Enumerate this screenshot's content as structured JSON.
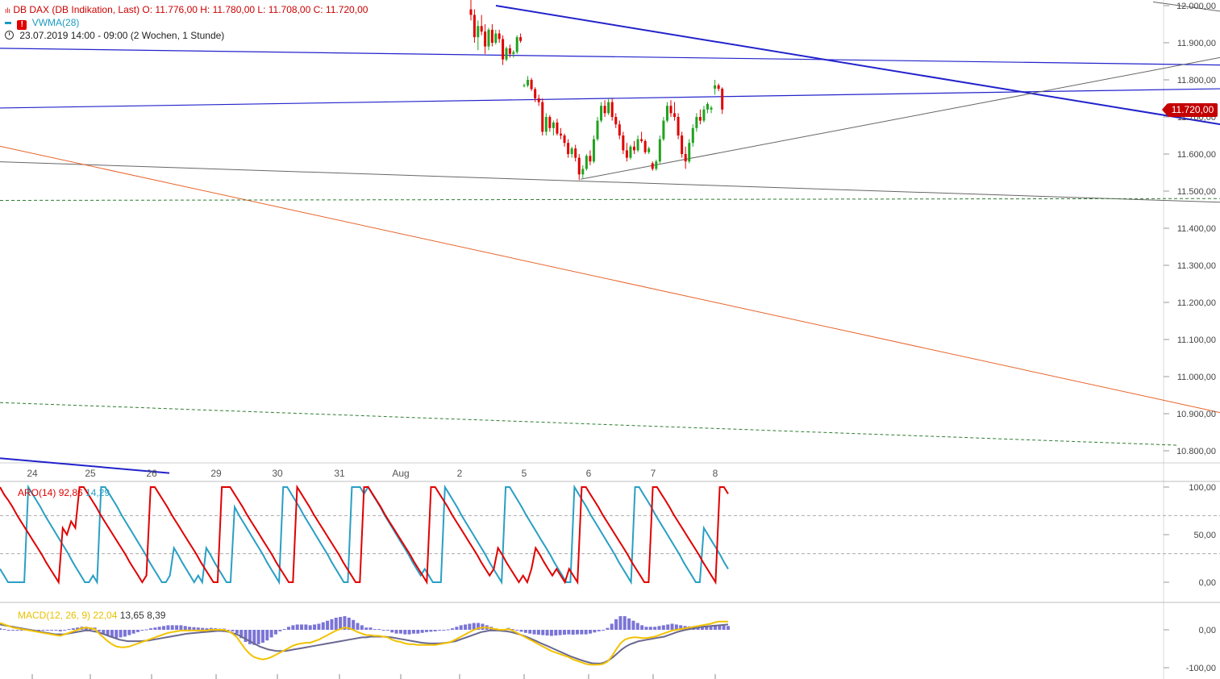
{
  "header": {
    "instrument_line": "DB DAX (DB Indikation, Last)  O: 11.776,00  H: 11.780,00  L: 11.708,00  C: 11.720,00",
    "indicator_label": "VWMA(28)",
    "range_line": "23.07.2019 14:00 - 09:00   (2 Wochen, 1 Stunde)"
  },
  "last_price": "11.720,00",
  "aroon": {
    "label": "ARO(14)",
    "up": "92,86",
    "down": "14,29"
  },
  "macd": {
    "label": "MACD(12, 26, 9)",
    "macd": "22,04",
    "signal": "13,65",
    "hist": "8,39"
  },
  "colors": {
    "up_candle": "#1fa31f",
    "down_candle": "#e00000",
    "trend_blue": "#2222cc",
    "trend_gray": "#666666",
    "trend_orange": "#e8642c",
    "support_green": "#2e7d32",
    "aroon_up": "#e00000",
    "aroon_down": "#2a9fc4",
    "macd_line": "#6a6890",
    "signal_line": "#f2c200",
    "histogram": "#7b74d6"
  },
  "chart_data": [
    {
      "type": "candlestick",
      "title": "DB DAX",
      "price_axis": {
        "range": [
          10750,
          12020
        ],
        "ticks": [
          "12.000,00",
          "11.900,00",
          "11.800,00",
          "11.700,00",
          "11.600,00",
          "11.500,00",
          "11.400,00",
          "11.300,00",
          "11.200,00",
          "11.100,00",
          "11.000,00",
          "10.900,00",
          "10.800,00"
        ]
      },
      "time_axis": {
        "labels": [
          "24",
          "25",
          "26",
          "29",
          "30",
          "31",
          "Aug",
          "2",
          "5",
          "6",
          "7",
          "8"
        ]
      },
      "candles": [
        [
          11990,
          12020,
          11960,
          11975
        ],
        [
          11975,
          11990,
          11900,
          11915
        ],
        [
          11915,
          11960,
          11880,
          11945
        ],
        [
          11945,
          11975,
          11920,
          11930
        ],
        [
          11930,
          11950,
          11870,
          11890
        ],
        [
          11890,
          11940,
          11880,
          11935
        ],
        [
          11935,
          11950,
          11890,
          11900
        ],
        [
          11900,
          11935,
          11895,
          11925
        ],
        [
          11925,
          11935,
          11900,
          11910
        ],
        [
          11910,
          11920,
          11840,
          11855
        ],
        [
          11855,
          11890,
          11850,
          11885
        ],
        [
          11885,
          11895,
          11860,
          11870
        ],
        [
          11870,
          11880,
          11860,
          11875
        ],
        [
          11875,
          11920,
          11870,
          11915
        ],
        [
          11915,
          11925,
          11900,
          11905
        ],
        [
          11785,
          11790,
          11780,
          11785
        ],
        [
          11785,
          11810,
          11780,
          11800
        ],
        [
          11800,
          11805,
          11770,
          11775
        ],
        [
          11775,
          11780,
          11740,
          11750
        ],
        [
          11750,
          11760,
          11730,
          11740
        ],
        [
          11740,
          11750,
          11650,
          11660
        ],
        [
          11660,
          11710,
          11650,
          11700
        ],
        [
          11700,
          11705,
          11660,
          11670
        ],
        [
          11670,
          11690,
          11650,
          11685
        ],
        [
          11685,
          11695,
          11650,
          11655
        ],
        [
          11655,
          11670,
          11640,
          11650
        ],
        [
          11650,
          11655,
          11620,
          11630
        ],
        [
          11630,
          11640,
          11590,
          11600
        ],
        [
          11600,
          11620,
          11590,
          11615
        ],
        [
          11615,
          11625,
          11580,
          11590
        ],
        [
          11590,
          11600,
          11530,
          11545
        ],
        [
          11545,
          11570,
          11535,
          11560
        ],
        [
          11560,
          11600,
          11555,
          11595
        ],
        [
          11595,
          11610,
          11570,
          11580
        ],
        [
          11580,
          11650,
          11575,
          11640
        ],
        [
          11640,
          11700,
          11635,
          11690
        ],
        [
          11690,
          11740,
          11685,
          11730
        ],
        [
          11730,
          11745,
          11700,
          11710
        ],
        [
          11710,
          11750,
          11705,
          11740
        ],
        [
          11740,
          11750,
          11690,
          11700
        ],
        [
          11700,
          11710,
          11670,
          11680
        ],
        [
          11680,
          11690,
          11640,
          11650
        ],
        [
          11650,
          11660,
          11600,
          11610
        ],
        [
          11610,
          11630,
          11580,
          11590
        ],
        [
          11590,
          11625,
          11585,
          11620
        ],
        [
          11620,
          11635,
          11600,
          11610
        ],
        [
          11610,
          11650,
          11605,
          11640
        ],
        [
          11640,
          11660,
          11630,
          11635
        ],
        [
          11635,
          11640,
          11600,
          11605
        ],
        [
          11605,
          11620,
          11600,
          11615
        ],
        [
          11575,
          11580,
          11555,
          11560
        ],
        [
          11560,
          11585,
          11555,
          11580
        ],
        [
          11580,
          11650,
          11575,
          11640
        ],
        [
          11640,
          11700,
          11635,
          11690
        ],
        [
          11690,
          11740,
          11685,
          11730
        ],
        [
          11730,
          11745,
          11700,
          11710
        ],
        [
          11710,
          11740,
          11690,
          11700
        ],
        [
          11700,
          11710,
          11640,
          11650
        ],
        [
          11650,
          11660,
          11590,
          11600
        ],
        [
          11600,
          11620,
          11560,
          11580
        ],
        [
          11580,
          11640,
          11575,
          11630
        ],
        [
          11630,
          11680,
          11620,
          11670
        ],
        [
          11670,
          11710,
          11660,
          11700
        ],
        [
          11700,
          11720,
          11680,
          11690
        ],
        [
          11690,
          11730,
          11685,
          11720
        ],
        [
          11720,
          11740,
          11710,
          11735
        ],
        [
          11720,
          11730,
          11710,
          11725
        ],
        [
          11776,
          11800,
          11760,
          11785
        ],
        [
          11785,
          11790,
          11770,
          11776
        ],
        [
          11776,
          11780,
          11708,
          11720
        ]
      ]
    },
    {
      "type": "line",
      "title": "ARO(14)",
      "y_axis": {
        "range": [
          0,
          100
        ],
        "ticks": [
          "100,00",
          "50,00",
          "0,00"
        ]
      },
      "series": [
        {
          "name": "Aroon Up",
          "values": [
            100,
            92,
            86,
            79,
            71,
            64,
            57,
            50,
            43,
            36,
            29,
            21,
            14,
            7,
            0,
            57,
            50,
            64,
            57,
            100,
            100,
            93,
            86,
            79,
            71,
            64,
            57,
            50,
            43,
            36,
            29,
            21,
            14,
            7,
            0,
            7,
            100,
            100,
            93,
            86,
            79,
            71,
            64,
            57,
            50,
            43,
            36,
            29,
            21,
            14,
            7,
            0,
            0,
            100,
            100,
            100,
            93,
            86,
            79,
            71,
            64,
            57,
            50,
            43,
            36,
            29,
            21,
            14,
            7,
            0,
            0,
            100,
            93,
            86,
            79,
            71,
            64,
            57,
            50,
            43,
            36,
            29,
            21,
            14,
            7,
            0,
            0,
            100,
            100,
            93,
            86,
            79,
            71,
            64,
            57,
            50,
            43,
            36,
            29,
            21,
            14,
            7,
            0,
            100,
            100,
            93,
            86,
            79,
            71,
            64,
            57,
            50,
            43,
            36,
            29,
            21,
            14,
            7,
            14,
            36,
            29,
            21,
            14,
            7,
            0,
            7,
            0,
            14,
            36,
            29,
            21,
            14,
            7,
            14,
            7,
            0,
            14,
            7,
            0,
            100,
            100,
            93,
            86,
            79,
            71,
            64,
            57,
            50,
            43,
            36,
            29,
            21,
            14,
            7,
            0,
            0,
            100,
            100,
            93,
            86,
            79,
            71,
            64,
            57,
            50,
            43,
            36,
            29,
            21,
            14,
            7,
            0,
            100,
            100,
            93
          ]
        },
        {
          "name": "Aroon Down",
          "values": [
            14,
            7,
            0,
            0,
            0,
            0,
            0,
            100,
            93,
            86,
            79,
            71,
            64,
            57,
            50,
            43,
            36,
            29,
            21,
            14,
            7,
            0,
            0,
            7,
            0,
            100,
            100,
            93,
            86,
            79,
            71,
            64,
            57,
            50,
            43,
            36,
            29,
            21,
            14,
            7,
            0,
            0,
            7,
            36,
            29,
            21,
            14,
            7,
            0,
            7,
            0,
            36,
            29,
            21,
            14,
            7,
            0,
            0,
            79,
            71,
            64,
            57,
            50,
            43,
            36,
            29,
            21,
            14,
            7,
            0,
            100,
            100,
            93,
            86,
            79,
            71,
            64,
            57,
            50,
            43,
            36,
            29,
            21,
            14,
            7,
            0,
            0,
            100,
            100,
            100,
            93,
            100,
            93,
            86,
            79,
            71,
            64,
            57,
            50,
            43,
            36,
            29,
            21,
            14,
            7,
            14,
            7,
            0,
            0,
            0,
            100,
            93,
            86,
            79,
            71,
            64,
            57,
            50,
            43,
            36,
            29,
            21,
            14,
            7,
            0,
            100,
            100,
            93,
            86,
            79,
            71,
            64,
            57,
            50,
            43,
            36,
            29,
            21,
            14,
            7,
            0,
            0,
            100,
            93,
            86,
            79,
            71,
            64,
            57,
            50,
            43,
            36,
            29,
            21,
            14,
            7,
            0,
            100,
            100,
            93,
            86,
            79,
            71,
            64,
            57,
            50,
            43,
            36,
            29,
            21,
            14,
            7,
            0,
            0,
            57,
            50,
            43,
            36,
            29,
            21,
            14
          ]
        }
      ]
    },
    {
      "type": "line",
      "title": "MACD(12, 26, 9)",
      "y_axis": {
        "range": [
          -110,
          90
        ],
        "ticks": [
          "0,00",
          "-100,00"
        ]
      },
      "series": [
        {
          "name": "MACD",
          "values": [
            18,
            14,
            10,
            6,
            4,
            2,
            0,
            -2,
            -4,
            -6,
            -8,
            -10,
            -12,
            -14,
            -16,
            -12,
            -8,
            -4,
            0,
            4,
            6,
            4,
            2,
            -10,
            -20,
            -30,
            -38,
            -44,
            -46,
            -46,
            -44,
            -40,
            -36,
            -32,
            -28,
            -24,
            -20,
            -16,
            -12,
            -8,
            -6,
            -4,
            -2,
            -2,
            -2,
            -2,
            -2,
            -2,
            -2,
            0,
            0,
            0,
            0,
            -4,
            -10,
            -20,
            -36,
            -52,
            -64,
            -72,
            -76,
            -78,
            -76,
            -72,
            -66,
            -60,
            -54,
            -48,
            -42,
            -38,
            -36,
            -34,
            -34,
            -30,
            -26,
            -20,
            -14,
            -8,
            -2,
            2,
            6,
            4,
            0,
            -6,
            -10,
            -14,
            -14,
            -16,
            -16,
            -18,
            -20,
            -26,
            -30,
            -32,
            -36,
            -38,
            -38,
            -40,
            -40,
            -40,
            -40,
            -40,
            -38,
            -36,
            -34,
            -30,
            -24,
            -18,
            -12,
            -6,
            0,
            4,
            6,
            6,
            4,
            2,
            0,
            0,
            2,
            -2,
            -8,
            -14,
            -20,
            -26,
            -32,
            -38,
            -44,
            -50,
            -56,
            -60,
            -64,
            -68,
            -72,
            -78,
            -82,
            -86,
            -90,
            -92,
            -92,
            -92,
            -90,
            -84,
            -70,
            -52,
            -36,
            -26,
            -22,
            -20,
            -20,
            -22,
            -22,
            -20,
            -18,
            -14,
            -10,
            -6,
            -2,
            0,
            2,
            4,
            6,
            8,
            10,
            12,
            14,
            16,
            20,
            22,
            22,
            22
          ]
        },
        {
          "name": "Signal",
          "values": [
            14,
            12,
            10,
            8,
            6,
            4,
            2,
            0,
            -2,
            -4,
            -6,
            -8,
            -10,
            -12,
            -12,
            -12,
            -10,
            -8,
            -6,
            -4,
            -2,
            -2,
            -4,
            -6,
            -10,
            -14,
            -18,
            -22,
            -26,
            -28,
            -30,
            -30,
            -30,
            -30,
            -29,
            -28,
            -26,
            -24,
            -22,
            -20,
            -18,
            -16,
            -14,
            -12,
            -10,
            -9,
            -8,
            -7,
            -6,
            -5,
            -4,
            -3,
            -3,
            -4,
            -6,
            -10,
            -14,
            -20,
            -26,
            -32,
            -38,
            -44,
            -48,
            -52,
            -54,
            -56,
            -56,
            -56,
            -54,
            -52,
            -50,
            -48,
            -46,
            -44,
            -42,
            -40,
            -38,
            -36,
            -34,
            -32,
            -30,
            -28,
            -26,
            -24,
            -22,
            -20,
            -20,
            -18,
            -18,
            -18,
            -18,
            -19,
            -20,
            -22,
            -24,
            -26,
            -28,
            -30,
            -32,
            -34,
            -35,
            -36,
            -36,
            -36,
            -35,
            -34,
            -32,
            -30,
            -26,
            -22,
            -18,
            -14,
            -10,
            -6,
            -4,
            -2,
            -2,
            -2,
            -3,
            -4,
            -6,
            -9,
            -12,
            -16,
            -20,
            -25,
            -30,
            -35,
            -40,
            -45,
            -50,
            -55,
            -60,
            -65,
            -70,
            -74,
            -78,
            -82,
            -85,
            -88,
            -89,
            -89,
            -86,
            -80,
            -72,
            -62,
            -52,
            -44,
            -38,
            -34,
            -30,
            -28,
            -26,
            -24,
            -22,
            -20,
            -18,
            -14,
            -10,
            -6,
            -3,
            0,
            2,
            4,
            6,
            8,
            9,
            10,
            11,
            12,
            13,
            14
          ]
        }
      ]
    }
  ]
}
